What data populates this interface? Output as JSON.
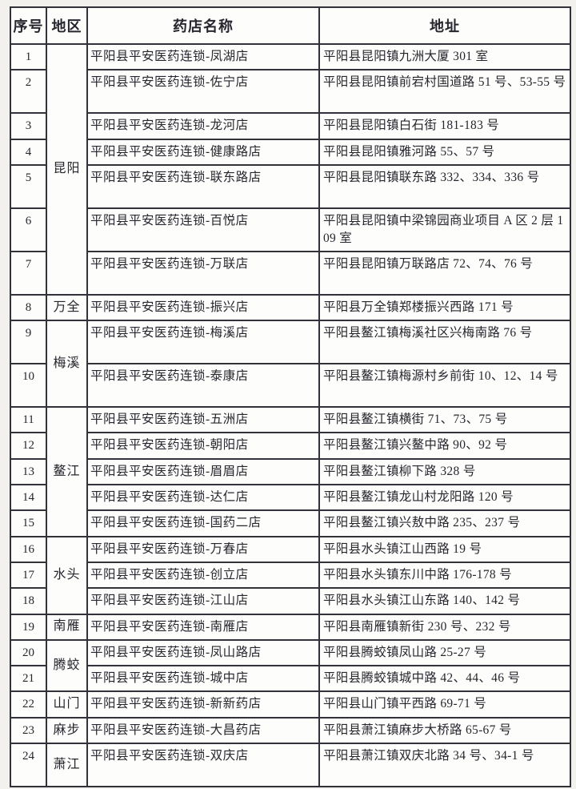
{
  "colors": {
    "border": "#32323a",
    "text": "#26262e",
    "page_background": "#f3f1ee",
    "cell_background": "#fdfdfc"
  },
  "table": {
    "headers": {
      "no": "序号",
      "region": "地区",
      "name": "药店名称",
      "address": "地址"
    },
    "rows": [
      {
        "no": "1",
        "region": "昆阳",
        "region_span": 7,
        "name": "平阳县平安医药连锁-凤湖店",
        "address": "平阳县昆阳镇九洲大厦 301 室"
      },
      {
        "no": "2",
        "name": "平阳县平安医药连锁-佐宁店",
        "address": "平阳县昆阳镇前宕村国道路 51 号、53-55 号"
      },
      {
        "no": "3",
        "name": "平阳县平安医药连锁-龙河店",
        "address": "平阳县昆阳镇白石街 181-183 号"
      },
      {
        "no": "4",
        "name": "平阳县平安医药连锁-健康路店",
        "address": "平阳县昆阳镇雅河路 55、57 号"
      },
      {
        "no": "5",
        "name": "平阳县平安医药连锁-联东路店",
        "address": "平阳县昆阳镇联东路 332、334、336 号"
      },
      {
        "no": "6",
        "name": "平阳县平安医药连锁-百悦店",
        "address": "平阳县昆阳镇中梁锦园商业项目 A 区 2 层 109 室"
      },
      {
        "no": "7",
        "name": "平阳县平安医药连锁-万联店",
        "address": "平阳县昆阳镇万联路店 72、74、76 号"
      },
      {
        "no": "8",
        "region": "万全",
        "region_span": 1,
        "name": "平阳县平安医药连锁-振兴店",
        "address": "平阳县万全镇郑楼振兴西路 171 号"
      },
      {
        "no": "9",
        "region": "梅溪",
        "region_span": 2,
        "name": "平阳县平安医药连锁-梅溪店",
        "address": "平阳县鳌江镇梅溪社区兴梅南路 76 号"
      },
      {
        "no": "10",
        "name": "平阳县平安医药连锁-泰康店",
        "address": "平阳县鳌江镇梅源村乡前街 10、12、14 号"
      },
      {
        "no": "11",
        "region": "鳌江",
        "region_span": 5,
        "name": "平阳县平安医药连锁-五洲店",
        "address": "平阳县鳌江镇横街 71、73、75 号"
      },
      {
        "no": "12",
        "name": "平阳县平安医药连锁-朝阳店",
        "address": "平阳县鳌江镇兴鳌中路 90、92 号"
      },
      {
        "no": "13",
        "name": "平阳县平安医药连锁-眉眉店",
        "address": "平阳县鳌江镇柳下路 328 号"
      },
      {
        "no": "14",
        "name": "平阳县平安医药连锁-达仁店",
        "address": "平阳县鳌江镇龙山村龙阳路 120 号"
      },
      {
        "no": "15",
        "name": "平阳县平安医药连锁-国药二店",
        "address": "平阳县鳌江镇兴敖中路 235、237 号"
      },
      {
        "no": "16",
        "region": "水头",
        "region_span": 3,
        "name": "平阳县平安医药连锁-万春店",
        "address": "平阳县水头镇江山西路 19 号"
      },
      {
        "no": "17",
        "name": "平阳县平安医药连锁-创立店",
        "address": "平阳县水头镇东川中路 176-178 号"
      },
      {
        "no": "18",
        "name": "平阳县平安医药连锁-江山店",
        "address": "平阳县水头镇江山东路 140、142 号"
      },
      {
        "no": "19",
        "region": "南雁",
        "region_span": 1,
        "name": "平阳县平安医药连锁-南雁店",
        "address": "平阳县南雁镇新街 230 号、232 号"
      },
      {
        "no": "20",
        "region": "腾蛟",
        "region_span": 2,
        "name": "平阳县平安医药连锁-凤山路店",
        "address": "平阳县腾蛟镇凤山路 25-27 号"
      },
      {
        "no": "21",
        "name": "平阳县平安医药连锁-城中店",
        "address": "平阳县腾蛟镇城中路 42、44、46 号"
      },
      {
        "no": "22",
        "region": "山门",
        "region_span": 1,
        "name": "平阳县平安医药连锁-新新药店",
        "address": "平阳县山门镇平西路 69-71 号"
      },
      {
        "no": "23",
        "region": "麻步",
        "region_span": 1,
        "name": "平阳县平安医药连锁-大昌药店",
        "address": "平阳县萧江镇麻步大桥路 65-67 号"
      },
      {
        "no": "24",
        "region": "萧江",
        "region_span": 1,
        "name": "平阳县平安医药连锁-双庆店",
        "address": "平阳县萧江镇双庆北路 34 号、34-1 号"
      }
    ]
  }
}
